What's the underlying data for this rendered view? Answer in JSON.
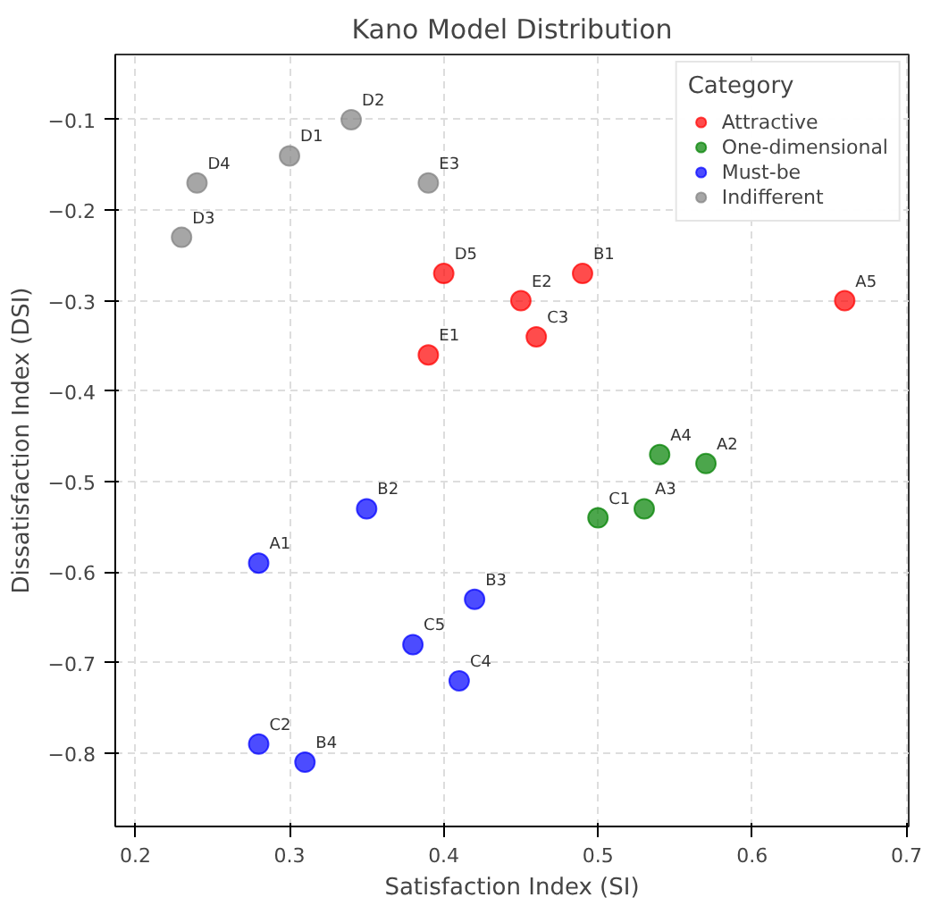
{
  "chart_data": {
    "type": "scatter",
    "title": "Kano Model Distribution",
    "xlabel": "Satisfaction Index (SI)",
    "ylabel": "Dissatisfaction Index (DSI)",
    "legend_title": "Category",
    "legend": "top right",
    "grid": true,
    "marker": "circle",
    "xlim": [
      0.187,
      0.7015
    ],
    "ylim": [
      -0.881,
      -0.028
    ],
    "xticks": [
      0.2,
      0.3,
      0.4,
      0.5,
      0.6,
      0.7
    ],
    "yticks": [
      {
        "value": -0.8,
        "label": "−0.8"
      },
      {
        "value": -0.7,
        "label": "−0.7"
      },
      {
        "value": -0.6,
        "label": "−0.6"
      },
      {
        "value": -0.5,
        "label": "−0.5"
      },
      {
        "value": -0.4,
        "label": "−0.4"
      },
      {
        "value": -0.3,
        "label": "−0.3"
      },
      {
        "value": -0.2,
        "label": "−0.2"
      },
      {
        "value": -0.1,
        "label": "−0.1"
      }
    ],
    "series": [
      {
        "name": "Attractive",
        "color": "#ff0000",
        "x": [
          0.4,
          0.45,
          0.49,
          0.66,
          0.46,
          0.39
        ],
        "values": [
          -0.27,
          -0.3,
          -0.27,
          -0.3,
          -0.34,
          -0.36
        ]
      },
      {
        "name": "One-dimensional",
        "color": "#008000",
        "x": [
          0.54,
          0.57,
          0.5,
          0.53
        ],
        "values": [
          -0.47,
          -0.48,
          -0.54,
          -0.53
        ]
      },
      {
        "name": "Must-be",
        "color": "#0000ff",
        "x": [
          0.35,
          0.28,
          0.42,
          0.38,
          0.41,
          0.28,
          0.31
        ],
        "values": [
          -0.53,
          -0.59,
          -0.63,
          -0.68,
          -0.72,
          -0.79,
          -0.81
        ]
      },
      {
        "name": "Indifferent",
        "color": "#808080",
        "x": [
          0.34,
          0.3,
          0.24,
          0.39,
          0.23
        ],
        "values": [
          -0.1,
          -0.14,
          -0.17,
          -0.17,
          -0.23
        ]
      }
    ],
    "annotations": [
      {
        "text": "D5",
        "x": 0.4,
        "y": -0.27
      },
      {
        "text": "E2",
        "x": 0.45,
        "y": -0.3
      },
      {
        "text": "B1",
        "x": 0.49,
        "y": -0.27
      },
      {
        "text": "A5",
        "x": 0.66,
        "y": -0.3
      },
      {
        "text": "C3",
        "x": 0.46,
        "y": -0.34
      },
      {
        "text": "E1",
        "x": 0.39,
        "y": -0.36
      },
      {
        "text": "A4",
        "x": 0.54,
        "y": -0.47
      },
      {
        "text": "A2",
        "x": 0.57,
        "y": -0.48
      },
      {
        "text": "C1",
        "x": 0.5,
        "y": -0.54
      },
      {
        "text": "A3",
        "x": 0.53,
        "y": -0.53
      },
      {
        "text": "B2",
        "x": 0.35,
        "y": -0.53
      },
      {
        "text": "A1",
        "x": 0.28,
        "y": -0.59
      },
      {
        "text": "B3",
        "x": 0.42,
        "y": -0.63
      },
      {
        "text": "C5",
        "x": 0.38,
        "y": -0.68
      },
      {
        "text": "C4",
        "x": 0.41,
        "y": -0.72
      },
      {
        "text": "C2",
        "x": 0.28,
        "y": -0.79
      },
      {
        "text": "B4",
        "x": 0.31,
        "y": -0.81
      },
      {
        "text": "D2",
        "x": 0.34,
        "y": -0.1
      },
      {
        "text": "D1",
        "x": 0.3,
        "y": -0.14
      },
      {
        "text": "D4",
        "x": 0.24,
        "y": -0.17
      },
      {
        "text": "E3",
        "x": 0.39,
        "y": -0.17
      },
      {
        "text": "D3",
        "x": 0.23,
        "y": -0.23
      }
    ]
  }
}
